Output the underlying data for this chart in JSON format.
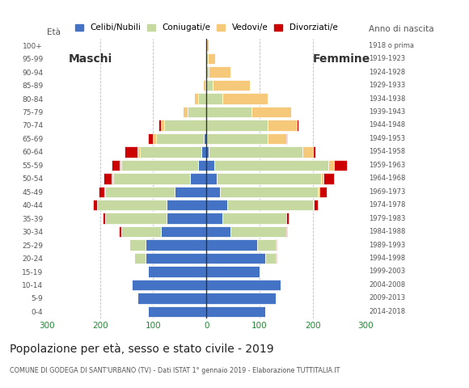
{
  "age_groups": [
    "0-4",
    "5-9",
    "10-14",
    "15-19",
    "20-24",
    "25-29",
    "30-34",
    "35-39",
    "40-44",
    "45-49",
    "50-54",
    "55-59",
    "60-64",
    "65-69",
    "70-74",
    "75-79",
    "80-84",
    "85-89",
    "90-94",
    "95-99",
    "100+"
  ],
  "birth_years": [
    "2014-2018",
    "2009-2013",
    "2004-2008",
    "1999-2003",
    "1994-1998",
    "1989-1993",
    "1984-1988",
    "1979-1983",
    "1974-1978",
    "1969-1973",
    "1964-1968",
    "1959-1963",
    "1954-1958",
    "1949-1953",
    "1944-1948",
    "1939-1943",
    "1934-1938",
    "1929-1933",
    "1924-1928",
    "1919-1923",
    "1918 o prima"
  ],
  "colors": {
    "celibe": "#4472c4",
    "coniugato": "#c5d9a0",
    "vedovo": "#f5c87a",
    "divorziato": "#cc0000"
  },
  "males": {
    "celibe": [
      110,
      130,
      140,
      110,
      115,
      115,
      85,
      75,
      75,
      60,
      30,
      15,
      10,
      5,
      0,
      0,
      0,
      0,
      0,
      0,
      0
    ],
    "coniugato": [
      0,
      0,
      0,
      0,
      20,
      30,
      75,
      115,
      130,
      130,
      145,
      145,
      115,
      90,
      80,
      35,
      15,
      2,
      0,
      0,
      0
    ],
    "vedovo": [
      0,
      0,
      0,
      0,
      0,
      0,
      0,
      0,
      0,
      2,
      3,
      3,
      4,
      5,
      5,
      10,
      8,
      5,
      2,
      0,
      0
    ],
    "divorziato": [
      0,
      0,
      0,
      0,
      0,
      0,
      5,
      5,
      8,
      10,
      15,
      15,
      25,
      10,
      5,
      0,
      0,
      0,
      0,
      0,
      0
    ]
  },
  "females": {
    "celibe": [
      110,
      130,
      140,
      100,
      110,
      95,
      45,
      30,
      40,
      25,
      20,
      15,
      5,
      0,
      0,
      0,
      0,
      0,
      0,
      0,
      0
    ],
    "coniugato": [
      0,
      0,
      0,
      0,
      20,
      35,
      105,
      120,
      160,
      185,
      195,
      215,
      175,
      115,
      115,
      85,
      30,
      12,
      5,
      2,
      0
    ],
    "vedovo": [
      0,
      0,
      0,
      0,
      0,
      0,
      0,
      0,
      2,
      2,
      5,
      10,
      20,
      35,
      55,
      75,
      85,
      70,
      40,
      15,
      5
    ],
    "divorziato": [
      0,
      0,
      0,
      0,
      2,
      2,
      2,
      5,
      8,
      15,
      20,
      25,
      5,
      2,
      3,
      0,
      0,
      0,
      0,
      0,
      0
    ]
  },
  "xlim": 300,
  "title": "Popolazione per età, sesso e stato civile - 2019",
  "subtitle": "COMUNE DI GODEGA DI SANT'URBANO (TV) - Dati ISTAT 1° gennaio 2019 - Elaborazione TUTTITALIA.IT",
  "ylabel_left": "Età",
  "ylabel_right": "Anno di nascita",
  "label_maschi": "Maschi",
  "label_femmine": "Femmine",
  "legend_labels": [
    "Celibi/Nubili",
    "Coniugati/e",
    "Vedovi/e",
    "Divorziati/e"
  ],
  "legend_colors": [
    "#4472c4",
    "#c5d9a0",
    "#f5c87a",
    "#cc0000"
  ],
  "background_color": "#ffffff",
  "grid_color": "#bbbbbb"
}
